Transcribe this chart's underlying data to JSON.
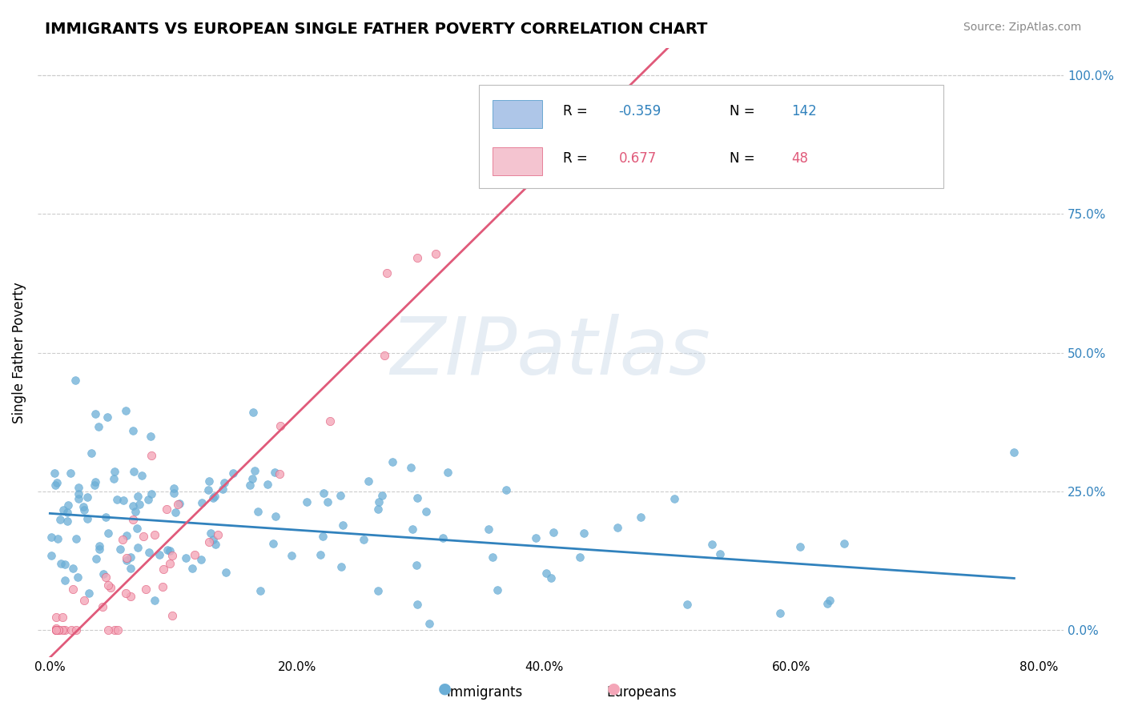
{
  "title": "IMMIGRANTS VS EUROPEAN SINGLE FATHER POVERTY CORRELATION CHART",
  "source": "Source: ZipAtlas.com",
  "ylabel": "Single Father Poverty",
  "xlabel_ticks": [
    "0.0%",
    "20.0%",
    "40.0%",
    "60.0%",
    "80.0%"
  ],
  "xlabel_vals": [
    0.0,
    20.0,
    40.0,
    60.0,
    80.0
  ],
  "ylabel_ticks": [
    "0.0%",
    "25.0%",
    "50.0%",
    "75.0%",
    "100.0%"
  ],
  "ylabel_vals": [
    0.0,
    25.0,
    50.0,
    75.0,
    100.0
  ],
  "blue_color": "#6baed6",
  "pink_color": "#f4a6b8",
  "blue_edge": "#4292c6",
  "pink_edge": "#e05a7a",
  "blue_line_color": "#3182bd",
  "pink_line_color": "#e05a7a",
  "legend_blue_label": "R = -0.359   N = 142",
  "legend_pink_label": "R =  0.677   N =  48",
  "R_blue": -0.359,
  "N_blue": 142,
  "R_pink": 0.677,
  "N_pink": 48,
  "watermark": "ZIPatlas",
  "immigrants_label": "Immigrants",
  "europeans_label": "Europeans",
  "bg_color": "#ffffff",
  "grid_color": "#cccccc"
}
